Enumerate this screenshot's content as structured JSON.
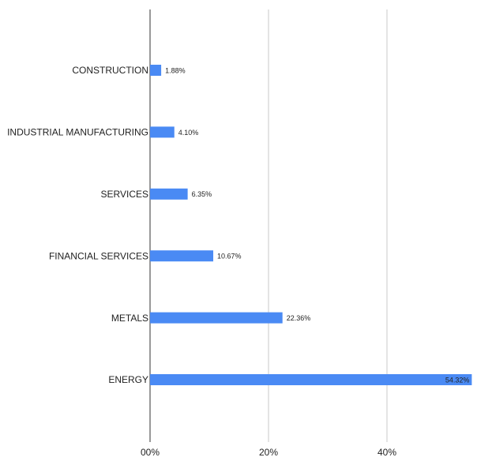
{
  "chart_data": {
    "type": "hbar",
    "categories": [
      "CONSTRUCTION",
      "INDUSTRIAL MANUFACTURING",
      "SERVICES",
      "FINANCIAL SERVICES",
      "METALS",
      "ENERGY"
    ],
    "values": [
      1.88,
      4.1,
      6.35,
      10.67,
      22.36,
      54.32
    ],
    "value_labels": [
      "1.88%",
      "4.10%",
      "6.35%",
      "10.67%",
      "22.36%",
      "54.32%"
    ],
    "color": "#4a8af4",
    "xlim": [
      0,
      55
    ],
    "xticks": [
      {
        "value": 0,
        "label": "00%"
      },
      {
        "value": 20,
        "label": "20%"
      },
      {
        "value": 40,
        "label": "40%"
      }
    ],
    "grid": true
  }
}
